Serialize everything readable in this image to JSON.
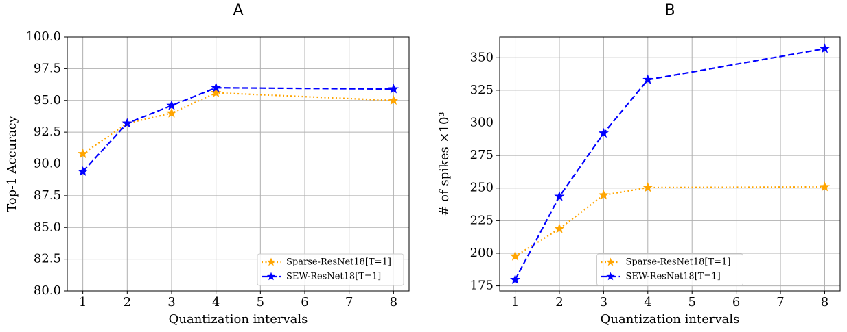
{
  "chart_data": [
    {
      "type": "line",
      "title": "A",
      "xlabel": "Quantization intervals",
      "ylabel": "Top-1 Accuracy",
      "x": [
        1,
        2,
        3,
        4,
        8
      ],
      "series": [
        {
          "name": "Sparse-ResNet18[T=1]",
          "color": "#ffa500",
          "linestyle": "dotted",
          "marker": "star",
          "values": [
            90.8,
            93.2,
            94.0,
            95.6,
            95.0
          ]
        },
        {
          "name": "SEW-ResNet18[T=1]",
          "color": "#0000ff",
          "linestyle": "dashed",
          "marker": "star",
          "values": [
            89.4,
            93.2,
            94.6,
            96.0,
            95.9
          ]
        }
      ],
      "xlim": [
        0.65,
        8.35
      ],
      "xticks": [
        1,
        2,
        3,
        4,
        5,
        6,
        7,
        8
      ],
      "ylim": [
        80,
        100
      ],
      "yticks": [
        {
          "value": 80,
          "label": "80.0"
        },
        82.5,
        {
          "value": 85,
          "label": "85.0"
        },
        87.5,
        {
          "value": 90,
          "label": "90.0"
        },
        92.5,
        {
          "value": 95,
          "label": "95.0"
        },
        97.5,
        {
          "value": 100,
          "label": "100.0"
        }
      ],
      "grid": true,
      "legend": "lower right"
    },
    {
      "type": "line",
      "title": "B",
      "xlabel": "Quantization intervals",
      "ylabel": "# of spikes ×10³",
      "x": [
        1,
        2,
        3,
        4,
        8
      ],
      "series": [
        {
          "name": "Sparse-ResNet18[T=1]",
          "color": "#ffa500",
          "linestyle": "dotted",
          "marker": "star",
          "values": [
            197.7,
            218.8,
            244.6,
            250.4,
            250.9
          ]
        },
        {
          "name": "SEW-ResNet18[T=1]",
          "color": "#0000ff",
          "linestyle": "dashed",
          "marker": "star",
          "values": [
            179.7,
            243.5,
            292.0,
            333.1,
            356.9
          ]
        }
      ],
      "xlim": [
        0.65,
        8.35
      ],
      "xticks": [
        1,
        2,
        3,
        4,
        5,
        6,
        7,
        8
      ],
      "ylim": [
        171.1,
        365.9
      ],
      "yticks": [
        175,
        200,
        225,
        250,
        275,
        300,
        325,
        350
      ],
      "grid": true,
      "legend": "lower center"
    }
  ]
}
